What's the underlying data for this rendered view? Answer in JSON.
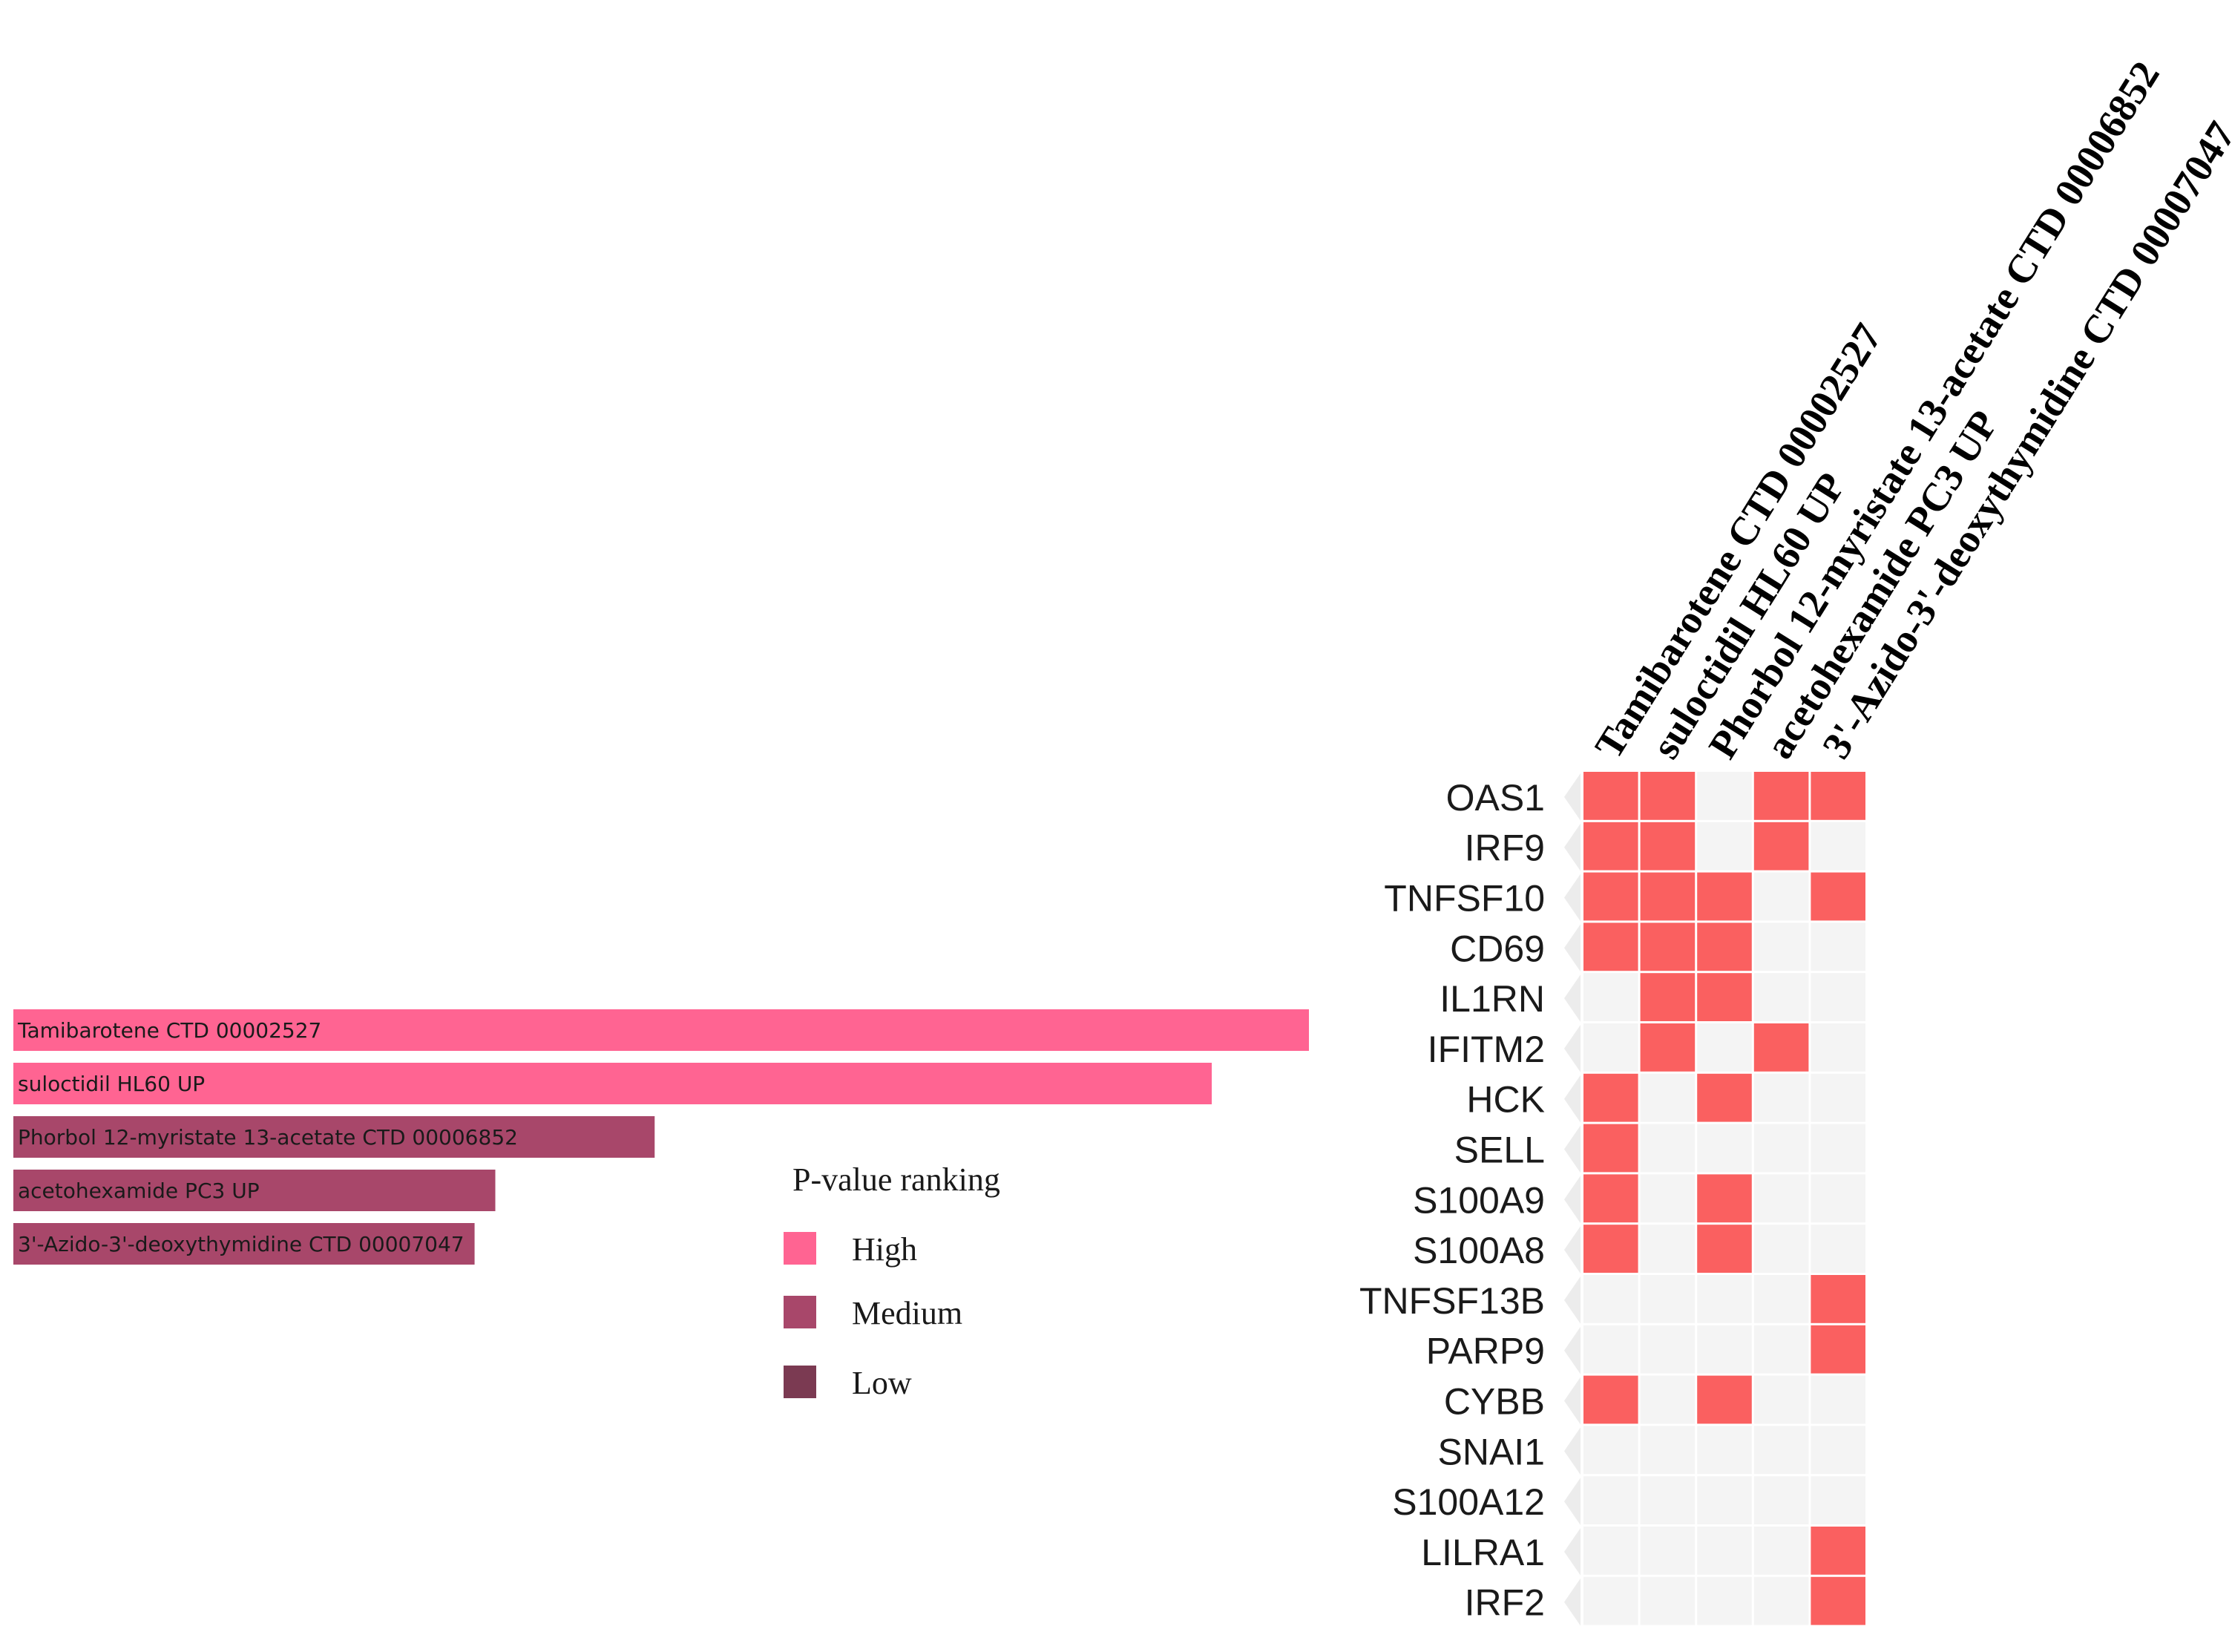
{
  "chart_data": [
    {
      "type": "bar",
      "orientation": "horizontal",
      "categories": [
        "Tamibarotene CTD 00002527",
        "suloctidil HL60 UP",
        "Phorbol 12-myristate 13-acetate CTD 00006852",
        "acetohexamide PC3 UP",
        "3'-Azido-3'-deoxythymidine CTD 00007047"
      ],
      "values": [
        100,
        92.5,
        49.5,
        37.2,
        35.6
      ],
      "ranking": [
        "High",
        "High",
        "Medium",
        "Medium",
        "Medium"
      ],
      "xlim": [
        0,
        100
      ],
      "legend": {
        "title": "P-value ranking",
        "placement": "right",
        "entries": [
          {
            "label": "High",
            "color": "#ff6492"
          },
          {
            "label": "Medium",
            "color": "#a8476a"
          },
          {
            "label": "Low",
            "color": "#7b3a52"
          }
        ]
      },
      "colors": {
        "High": "#ff6492",
        "Medium": "#a8476a",
        "Low": "#7b3a52"
      }
    },
    {
      "type": "heatmap",
      "columns": [
        "Tamibarotene CTD 00002527",
        "suloctidil HL60 UP",
        "Phorbol 12-myristate 13-acetate CTD 00006852",
        "acetohexamide PC3 UP",
        "3'-Azido-3'-deoxythymidine CTD 00007047"
      ],
      "rows": [
        "OAS1",
        "IRF9",
        "TNFSF10",
        "CD69",
        "IL1RN",
        "IFITM2",
        "HCK",
        "SELL",
        "S100A9",
        "S100A8",
        "TNFSF13B",
        "PARP9",
        "CYBB",
        "SNAI1",
        "S100A12",
        "LILRA1",
        "IRF2"
      ],
      "matrix": [
        [
          1,
          1,
          0,
          1,
          1
        ],
        [
          1,
          1,
          0,
          1,
          0
        ],
        [
          1,
          1,
          1,
          0,
          1
        ],
        [
          1,
          1,
          1,
          0,
          0
        ],
        [
          0,
          1,
          1,
          0,
          0
        ],
        [
          0,
          1,
          0,
          1,
          0
        ],
        [
          1,
          0,
          1,
          0,
          0
        ],
        [
          1,
          0,
          0,
          0,
          0
        ],
        [
          1,
          0,
          1,
          0,
          0
        ],
        [
          1,
          0,
          1,
          0,
          0
        ],
        [
          0,
          0,
          0,
          0,
          1
        ],
        [
          0,
          0,
          0,
          0,
          1
        ],
        [
          1,
          0,
          1,
          0,
          0
        ],
        [
          0,
          0,
          0,
          0,
          0
        ],
        [
          0,
          0,
          0,
          0,
          0
        ],
        [
          0,
          0,
          0,
          0,
          1
        ],
        [
          0,
          0,
          0,
          0,
          1
        ]
      ],
      "colors": {
        "on": "#fa6060",
        "off": "#f4f4f4",
        "label_strip": "#ececec"
      }
    }
  ]
}
